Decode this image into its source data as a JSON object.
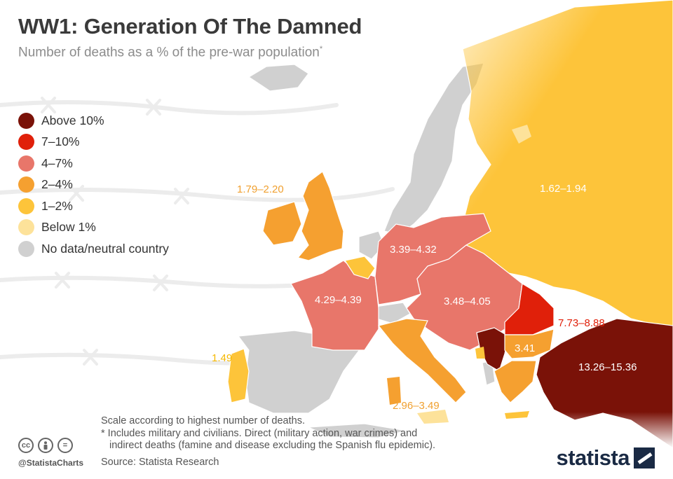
{
  "header": {
    "title": "WW1: Generation Of The Damned",
    "subtitle": "Number of deaths as a % of the pre-war population",
    "subtitle_mark": "*"
  },
  "legend": [
    {
      "label": "Above 10%",
      "color": "#7a1208"
    },
    {
      "label": "7–10%",
      "color": "#e0200a"
    },
    {
      "label": "4–7%",
      "color": "#e8766a"
    },
    {
      "label": "2–4%",
      "color": "#f5a030"
    },
    {
      "label": "1–2%",
      "color": "#fdc43a"
    },
    {
      "label": "Below 1%",
      "color": "#fde29a"
    },
    {
      "label": "No data/neutral country",
      "color": "#d0d0d0"
    }
  ],
  "map_labels": {
    "uk": "1.79–2.20",
    "russia": "1.62–1.94",
    "germany": "3.39–4.32",
    "france": "4.29–4.39",
    "austria_hungary": "3.48–4.05",
    "romania": "7.73–8.88",
    "bulgaria": "3.41",
    "ottoman": "13.26–15.36",
    "portugal": "1.49",
    "italy": "2.96–3.49"
  },
  "footer": {
    "note_scale": "Scale according to highest number of deaths.",
    "note_1": "* Includes military and civilians. Direct (military action, war crimes) and",
    "note_2": "indirect deaths (famine and disease excluding the Spanish flu epidemic).",
    "source": "Source: Statista Research",
    "handle": "@StatistaCharts",
    "brand": "statista"
  },
  "icons": {
    "cc": "cc-icon",
    "by": "person-icon",
    "nd": "equals-icon",
    "brand_mark": "statista-logo-icon"
  },
  "colors": {
    "above_10": "#7a1208",
    "7_10": "#e0200a",
    "4_7": "#e8766a",
    "2_4": "#f5a030",
    "1_2": "#fdc43a",
    "below_1": "#fde29a",
    "neutral": "#d0d0d0",
    "label_orange": "#f0a030",
    "label_red": "#e0200a"
  }
}
